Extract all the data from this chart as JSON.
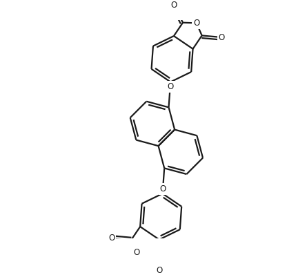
{
  "background_color": "#ffffff",
  "line_color": "#1a1a1a",
  "line_width": 1.6,
  "font_size": 8.5,
  "figsize": [
    4.16,
    3.98
  ],
  "dpi": 100,
  "xlim": [
    0,
    416
  ],
  "ylim": [
    0,
    398
  ]
}
